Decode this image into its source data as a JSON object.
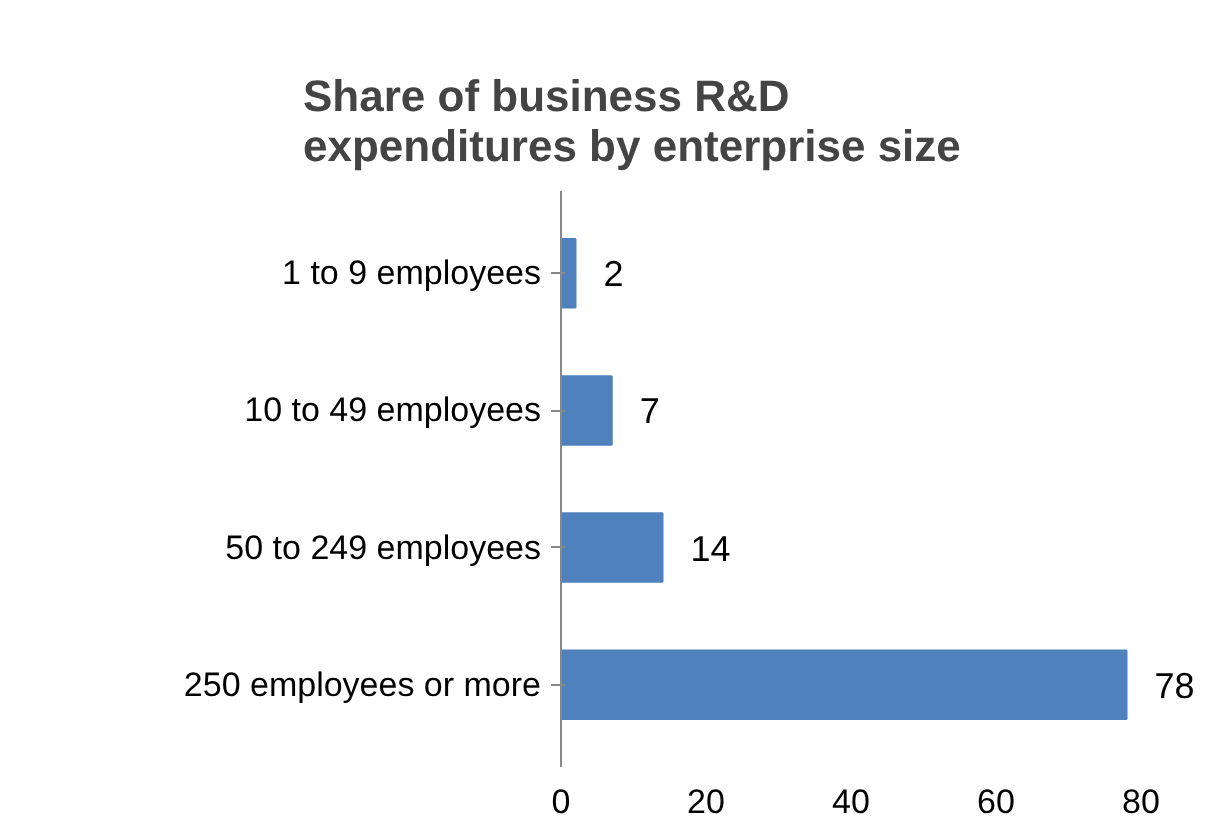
{
  "chart_data": {
    "type": "bar",
    "orientation": "horizontal",
    "title": "Share of business R&D expenditures by enterprise size",
    "categories": [
      "1 to 9 employees",
      "10 to 49 employees",
      "50 to 249 employees",
      "250 employees or more"
    ],
    "values": [
      2,
      7,
      14,
      78
    ],
    "color": "#4f81bd",
    "data_labels": true,
    "xlim": [
      0,
      80
    ],
    "xticks": [
      0,
      20,
      40,
      60,
      80
    ],
    "grid": false
  }
}
